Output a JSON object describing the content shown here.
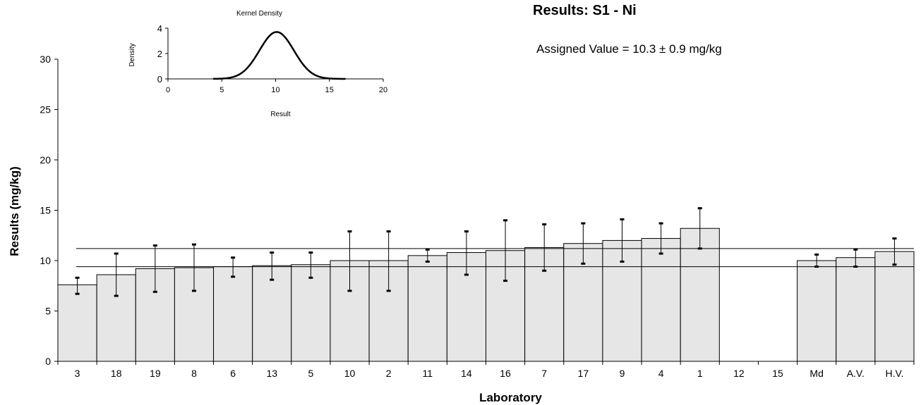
{
  "chart_data": [
    {
      "type": "bar",
      "title": "Results: S1 - Ni",
      "subtitle": "Assigned Value = 10.3 ± 0.9 mg/kg",
      "xlabel": "Laboratory",
      "ylabel": "Results (mg/kg)",
      "ylim": [
        0,
        30
      ],
      "yticks": [
        0,
        5,
        10,
        15,
        20,
        25,
        30
      ],
      "categories": [
        "3",
        "18",
        "19",
        "8",
        "6",
        "13",
        "5",
        "10",
        "2",
        "11",
        "14",
        "16",
        "7",
        "17",
        "9",
        "4",
        "1",
        "12",
        "15",
        "Md",
        "A.V.",
        "H.V."
      ],
      "values": [
        7.6,
        8.6,
        9.2,
        9.3,
        9.4,
        9.5,
        9.6,
        10.0,
        10.0,
        10.5,
        10.8,
        11.0,
        11.3,
        11.7,
        12.0,
        12.2,
        13.2,
        null,
        null,
        10.0,
        10.3,
        10.9
      ],
      "error_low": [
        6.7,
        6.5,
        6.9,
        7.0,
        8.4,
        8.1,
        8.3,
        7.0,
        7.0,
        9.9,
        8.6,
        8.0,
        9.0,
        9.7,
        9.9,
        10.7,
        11.2,
        null,
        null,
        9.4,
        9.4,
        9.6
      ],
      "error_high": [
        8.3,
        10.7,
        11.5,
        11.6,
        10.3,
        10.8,
        10.8,
        12.9,
        12.9,
        11.1,
        12.9,
        14.0,
        13.6,
        13.7,
        14.1,
        13.7,
        15.2,
        null,
        null,
        10.6,
        11.1,
        12.2
      ],
      "reference_lines": [
        11.2,
        9.4
      ],
      "grid": false
    },
    {
      "type": "line",
      "title": "Kernel Density",
      "xlabel": "Result",
      "ylabel": "Density",
      "xlim": [
        0,
        20
      ],
      "ylim": [
        0,
        4
      ],
      "xticks": [
        0,
        5,
        10,
        15,
        20
      ],
      "yticks": [
        0,
        2,
        4
      ],
      "curve": {
        "mean": 10.1,
        "sd": 1.6,
        "peak": 3.7,
        "x_min": 4.2,
        "x_max": 16.5
      }
    }
  ]
}
